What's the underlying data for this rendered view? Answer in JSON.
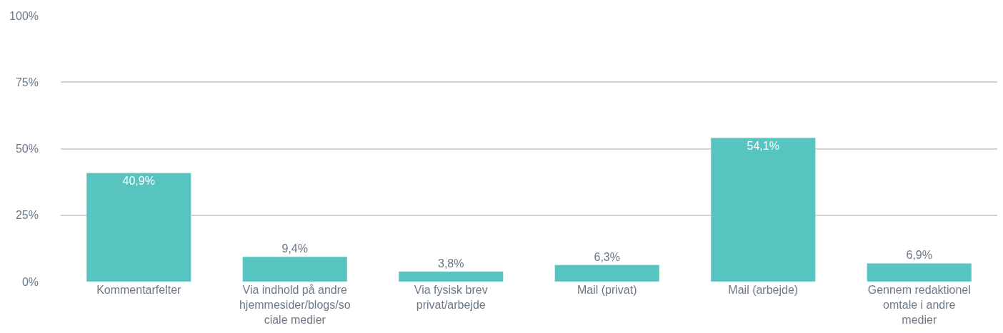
{
  "chart_data": {
    "type": "bar",
    "categories": [
      "Kommentarfelter",
      "Via indhold på andre hjemmesider/blogs/sociale medier",
      "Via fysisk brev privat/arbejde",
      "Mail (privat)",
      "Mail (arbejde)",
      "Gennem redaktionel omtale i andre medier"
    ],
    "values": [
      40.9,
      9.4,
      3.8,
      6.3,
      54.1,
      6.9
    ],
    "value_labels": [
      "40,9%",
      "9,4%",
      "3,8%",
      "6,3%",
      "54,1%",
      "6,9%"
    ],
    "color": "#57c4c0",
    "ylim": [
      0,
      100
    ],
    "yticks": [
      {
        "value": 0,
        "label": "0%"
      },
      {
        "value": 25,
        "label": "25%"
      },
      {
        "value": 50,
        "label": "50%"
      },
      {
        "value": 75,
        "label": "75%"
      },
      {
        "value": 100,
        "label": "100%"
      }
    ],
    "grid": "y",
    "legend": false
  }
}
